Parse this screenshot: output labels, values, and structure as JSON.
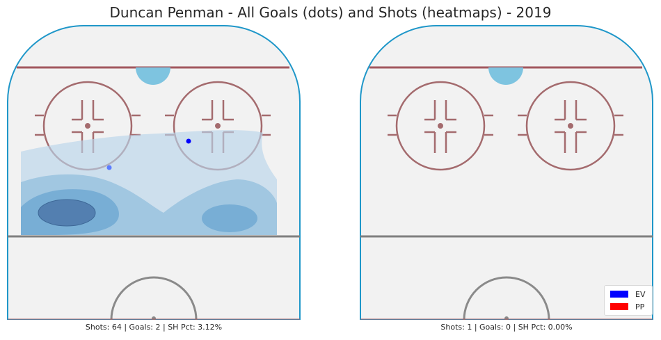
{
  "title": "Duncan Penman - All Goals (dots) and Shots (heatmaps) - 2019",
  "chart_data": [
    {
      "type": "heatmap",
      "panel": "left",
      "caption": "Shots: 64 | Goals: 2 | SH Pct: 3.12%",
      "shots": 64,
      "goals": [
        {
          "x": 30,
          "y": 25,
          "strength": "EV"
        },
        {
          "x": 75,
          "y": 14,
          "strength": "EV"
        }
      ],
      "heatmap_levels": 4
    },
    {
      "type": "heatmap",
      "panel": "right",
      "caption": "Shots: 1 | Goals: 0 | SH Pct: 0.00%",
      "shots": 1,
      "goals": [],
      "heatmap_levels": 0
    }
  ],
  "legend": [
    {
      "label": "EV",
      "color": "#0000ff"
    },
    {
      "label": "PP",
      "color": "#ff0000"
    }
  ]
}
